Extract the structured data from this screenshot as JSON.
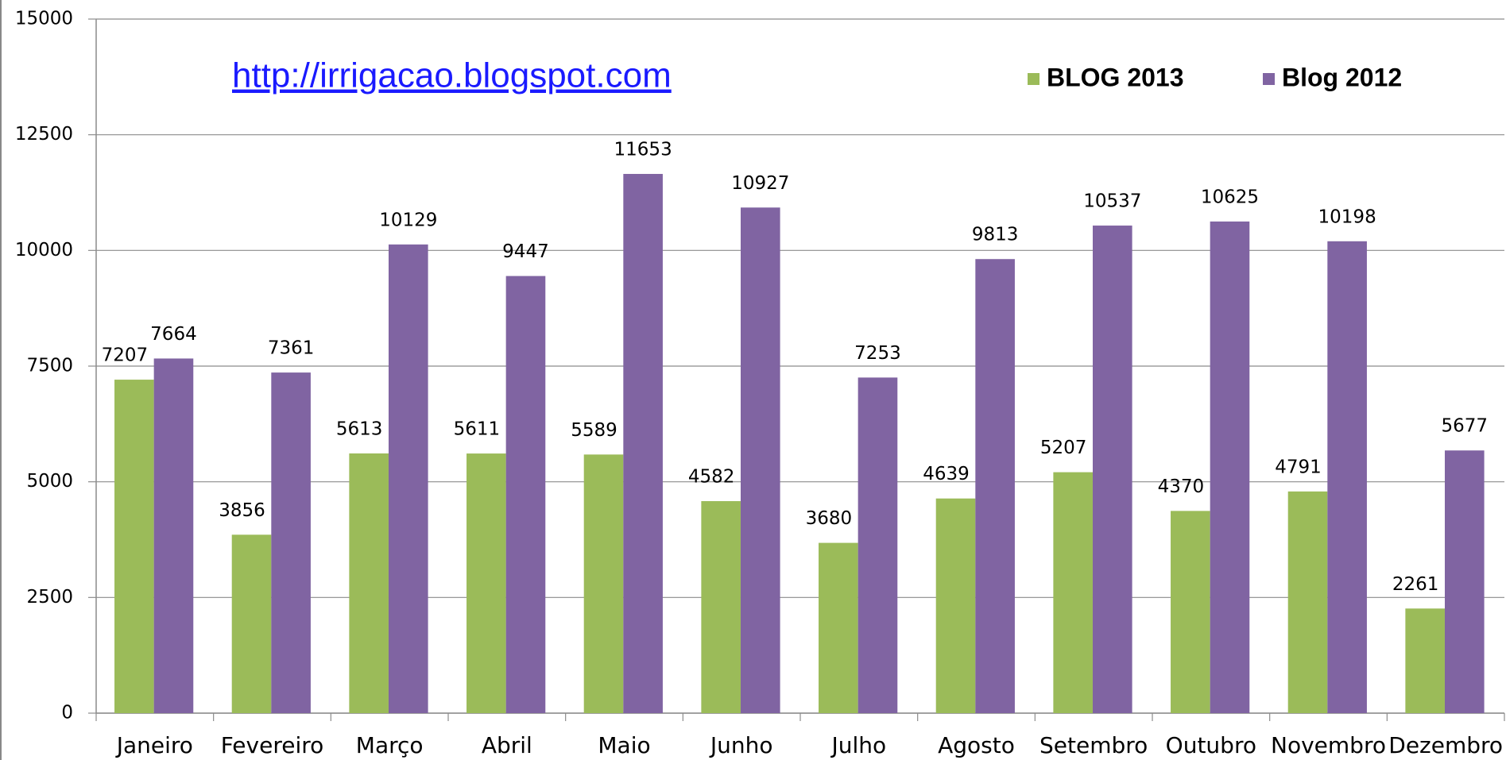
{
  "chart_data": {
    "type": "bar",
    "annotation": "http://irrigacao.blogspot.com",
    "categories": [
      "Janeiro",
      "Fevereiro",
      "Março",
      "Abril",
      "Maio",
      "Junho",
      "Julho",
      "Agosto",
      "Setembro",
      "Outubro",
      "Novembro",
      "Dezembro"
    ],
    "series": [
      {
        "name": "BLOG 2013",
        "color": "#9bbb59",
        "values": [
          7207,
          3856,
          5613,
          5611,
          5589,
          4582,
          3680,
          4639,
          5207,
          4370,
          4791,
          2261
        ]
      },
      {
        "name": "Blog 2012",
        "color": "#8064a2",
        "values": [
          7664,
          7361,
          10129,
          9447,
          11653,
          10927,
          7253,
          9813,
          10537,
          10625,
          10198,
          5677
        ]
      }
    ],
    "ylim": [
      0,
      15000
    ],
    "yticks": [
      0,
      2500,
      5000,
      7500,
      10000,
      12500,
      15000
    ],
    "grid": true,
    "legend": "top-right"
  }
}
